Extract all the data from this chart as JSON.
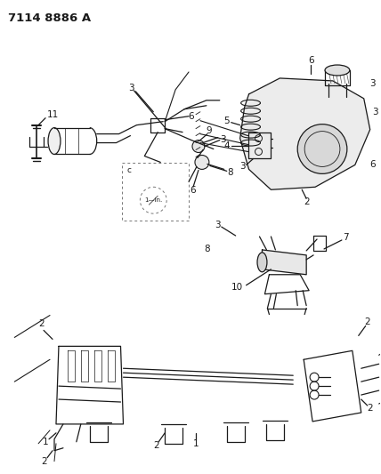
{
  "title": "7114 8886 A",
  "bg_color": "#ffffff",
  "line_color": "#1a1a1a",
  "title_fontsize": 9.5,
  "label_fontsize": 7.5,
  "fig_width": 4.28,
  "fig_height": 5.33,
  "dpi": 100
}
